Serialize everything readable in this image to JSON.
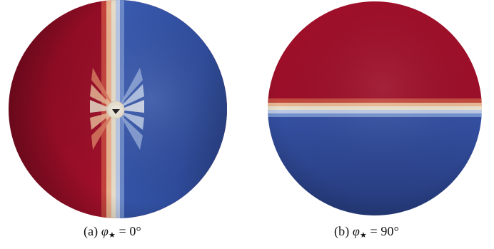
{
  "panels": [
    {
      "label": "(a)",
      "symbol": "φ",
      "subscript": "★",
      "equals": "=",
      "value": "0°",
      "colors": {
        "warm": "#9d0f27",
        "cool": "#2f4c9c",
        "neutral": "#e6dcc8"
      }
    },
    {
      "label": "(b)",
      "symbol": "φ",
      "subscript": "★",
      "equals": "=",
      "value": "90°",
      "colors": {
        "warm": "#a10f2a",
        "cool": "#293f8e",
        "neutral": "#e8e0cc"
      }
    }
  ]
}
